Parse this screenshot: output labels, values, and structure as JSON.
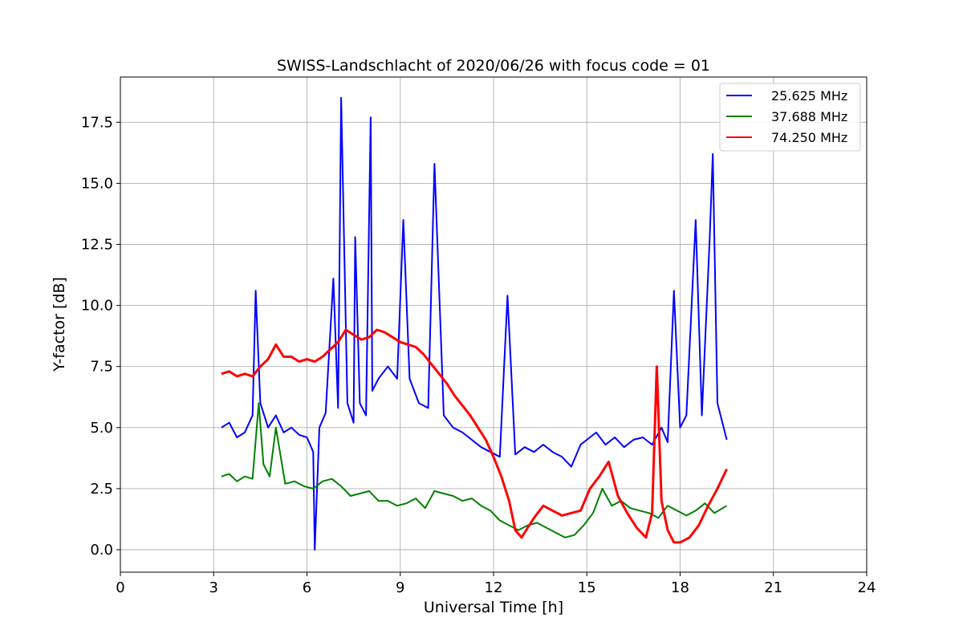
{
  "chart_data": {
    "type": "line",
    "title": "SWISS-Landschlacht of 2020/06/26 with focus code = 01",
    "xlabel": "Universal Time [h]",
    "ylabel": "Y-factor [dB]",
    "xlim": [
      0,
      24
    ],
    "ylim": [
      -0.92,
      19.35
    ],
    "xticks": [
      0,
      3,
      6,
      9,
      12,
      15,
      18,
      21,
      24
    ],
    "xtick_labels": [
      "0",
      "3",
      "6",
      "9",
      "12",
      "15",
      "18",
      "21",
      "24"
    ],
    "yticks": [
      0.0,
      2.5,
      5.0,
      7.5,
      10.0,
      12.5,
      15.0,
      17.5
    ],
    "ytick_labels": [
      "0.0",
      "2.5",
      "5.0",
      "7.5",
      "10.0",
      "12.5",
      "15.0",
      "17.5"
    ],
    "grid": true,
    "legend_position": "top-right",
    "series": [
      {
        "name": "25.625 MHz",
        "color": "#0000ff",
        "x": [
          3.25,
          3.5,
          3.75,
          4.0,
          4.25,
          4.35,
          4.5,
          4.75,
          5.0,
          5.25,
          5.5,
          5.75,
          6.0,
          6.2,
          6.25,
          6.4,
          6.6,
          6.85,
          7.0,
          7.1,
          7.3,
          7.5,
          7.55,
          7.7,
          7.9,
          8.05,
          8.1,
          8.3,
          8.6,
          8.9,
          9.1,
          9.3,
          9.6,
          9.9,
          10.1,
          10.4,
          10.7,
          11.0,
          11.3,
          11.6,
          11.9,
          12.2,
          12.45,
          12.7,
          13.0,
          13.3,
          13.6,
          13.9,
          14.2,
          14.5,
          14.8,
          15.0,
          15.3,
          15.6,
          15.9,
          16.2,
          16.5,
          16.8,
          17.1,
          17.4,
          17.6,
          17.8,
          18.0,
          18.2,
          18.5,
          18.7,
          18.95,
          19.05,
          19.2,
          19.5
        ],
        "values": [
          5.0,
          5.2,
          4.6,
          4.8,
          5.5,
          10.6,
          6.0,
          5.0,
          5.5,
          4.8,
          5.0,
          4.7,
          4.6,
          4.0,
          0.0,
          5.0,
          5.6,
          11.1,
          5.8,
          18.5,
          6.0,
          5.2,
          12.8,
          6.0,
          5.5,
          17.7,
          6.5,
          7.0,
          7.5,
          7.0,
          13.5,
          7.0,
          6.0,
          5.8,
          15.8,
          5.5,
          5.0,
          4.8,
          4.5,
          4.2,
          4.0,
          3.8,
          10.4,
          3.9,
          4.2,
          4.0,
          4.3,
          4.0,
          3.8,
          3.4,
          4.3,
          4.5,
          4.8,
          4.3,
          4.6,
          4.2,
          4.5,
          4.6,
          4.3,
          5.0,
          4.4,
          10.6,
          5.0,
          5.5,
          13.5,
          5.5,
          12.7,
          16.2,
          6.0,
          4.5
        ]
      },
      {
        "name": "37.688 MHz",
        "color": "#008000",
        "x": [
          3.25,
          3.5,
          3.75,
          4.0,
          4.25,
          4.45,
          4.6,
          4.8,
          5.0,
          5.3,
          5.6,
          5.9,
          6.2,
          6.5,
          6.8,
          7.1,
          7.4,
          7.7,
          8.0,
          8.3,
          8.6,
          8.9,
          9.2,
          9.5,
          9.8,
          10.1,
          10.4,
          10.7,
          11.0,
          11.3,
          11.6,
          11.9,
          12.2,
          12.5,
          12.8,
          13.1,
          13.4,
          13.7,
          14.0,
          14.3,
          14.6,
          14.9,
          15.2,
          15.5,
          15.8,
          16.1,
          16.4,
          16.7,
          17.0,
          17.3,
          17.6,
          17.9,
          18.2,
          18.5,
          18.8,
          19.1,
          19.5
        ],
        "values": [
          3.0,
          3.1,
          2.8,
          3.0,
          2.9,
          6.0,
          3.5,
          3.0,
          5.0,
          2.7,
          2.8,
          2.6,
          2.5,
          2.8,
          2.9,
          2.6,
          2.2,
          2.3,
          2.4,
          2.0,
          2.0,
          1.8,
          1.9,
          2.1,
          1.7,
          2.4,
          2.3,
          2.2,
          2.0,
          2.1,
          1.8,
          1.6,
          1.2,
          1.0,
          0.8,
          1.0,
          1.1,
          0.9,
          0.7,
          0.5,
          0.6,
          1.0,
          1.5,
          2.5,
          1.8,
          2.0,
          1.7,
          1.6,
          1.5,
          1.3,
          1.8,
          1.6,
          1.4,
          1.6,
          1.9,
          1.5,
          1.8
        ]
      },
      {
        "name": "74.250 MHz",
        "color": "#ff0000",
        "x": [
          3.25,
          3.5,
          3.75,
          4.0,
          4.25,
          4.5,
          4.75,
          5.0,
          5.25,
          5.5,
          5.75,
          6.0,
          6.25,
          6.5,
          6.75,
          7.0,
          7.25,
          7.5,
          7.75,
          8.0,
          8.25,
          8.5,
          8.75,
          9.0,
          9.25,
          9.5,
          9.75,
          10.0,
          10.25,
          10.5,
          10.75,
          11.0,
          11.25,
          11.5,
          11.75,
          12.0,
          12.25,
          12.5,
          12.7,
          12.9,
          13.1,
          13.3,
          13.6,
          13.9,
          14.2,
          14.5,
          14.8,
          15.1,
          15.4,
          15.7,
          16.0,
          16.3,
          16.6,
          16.9,
          17.1,
          17.25,
          17.4,
          17.6,
          17.8,
          18.0,
          18.3,
          18.6,
          18.9,
          19.2,
          19.5
        ],
        "values": [
          7.2,
          7.3,
          7.1,
          7.2,
          7.1,
          7.5,
          7.8,
          8.4,
          7.9,
          7.9,
          7.7,
          7.8,
          7.7,
          7.9,
          8.2,
          8.5,
          9.0,
          8.8,
          8.6,
          8.7,
          9.0,
          8.9,
          8.7,
          8.5,
          8.4,
          8.3,
          8.0,
          7.6,
          7.2,
          6.8,
          6.3,
          5.9,
          5.5,
          5.0,
          4.5,
          3.8,
          3.0,
          2.0,
          0.8,
          0.5,
          0.9,
          1.3,
          1.8,
          1.6,
          1.4,
          1.5,
          1.6,
          2.5,
          3.0,
          3.6,
          2.2,
          1.5,
          0.9,
          0.5,
          1.5,
          7.5,
          2.0,
          0.8,
          0.3,
          0.3,
          0.5,
          1.0,
          1.8,
          2.5,
          3.3
        ]
      }
    ]
  }
}
